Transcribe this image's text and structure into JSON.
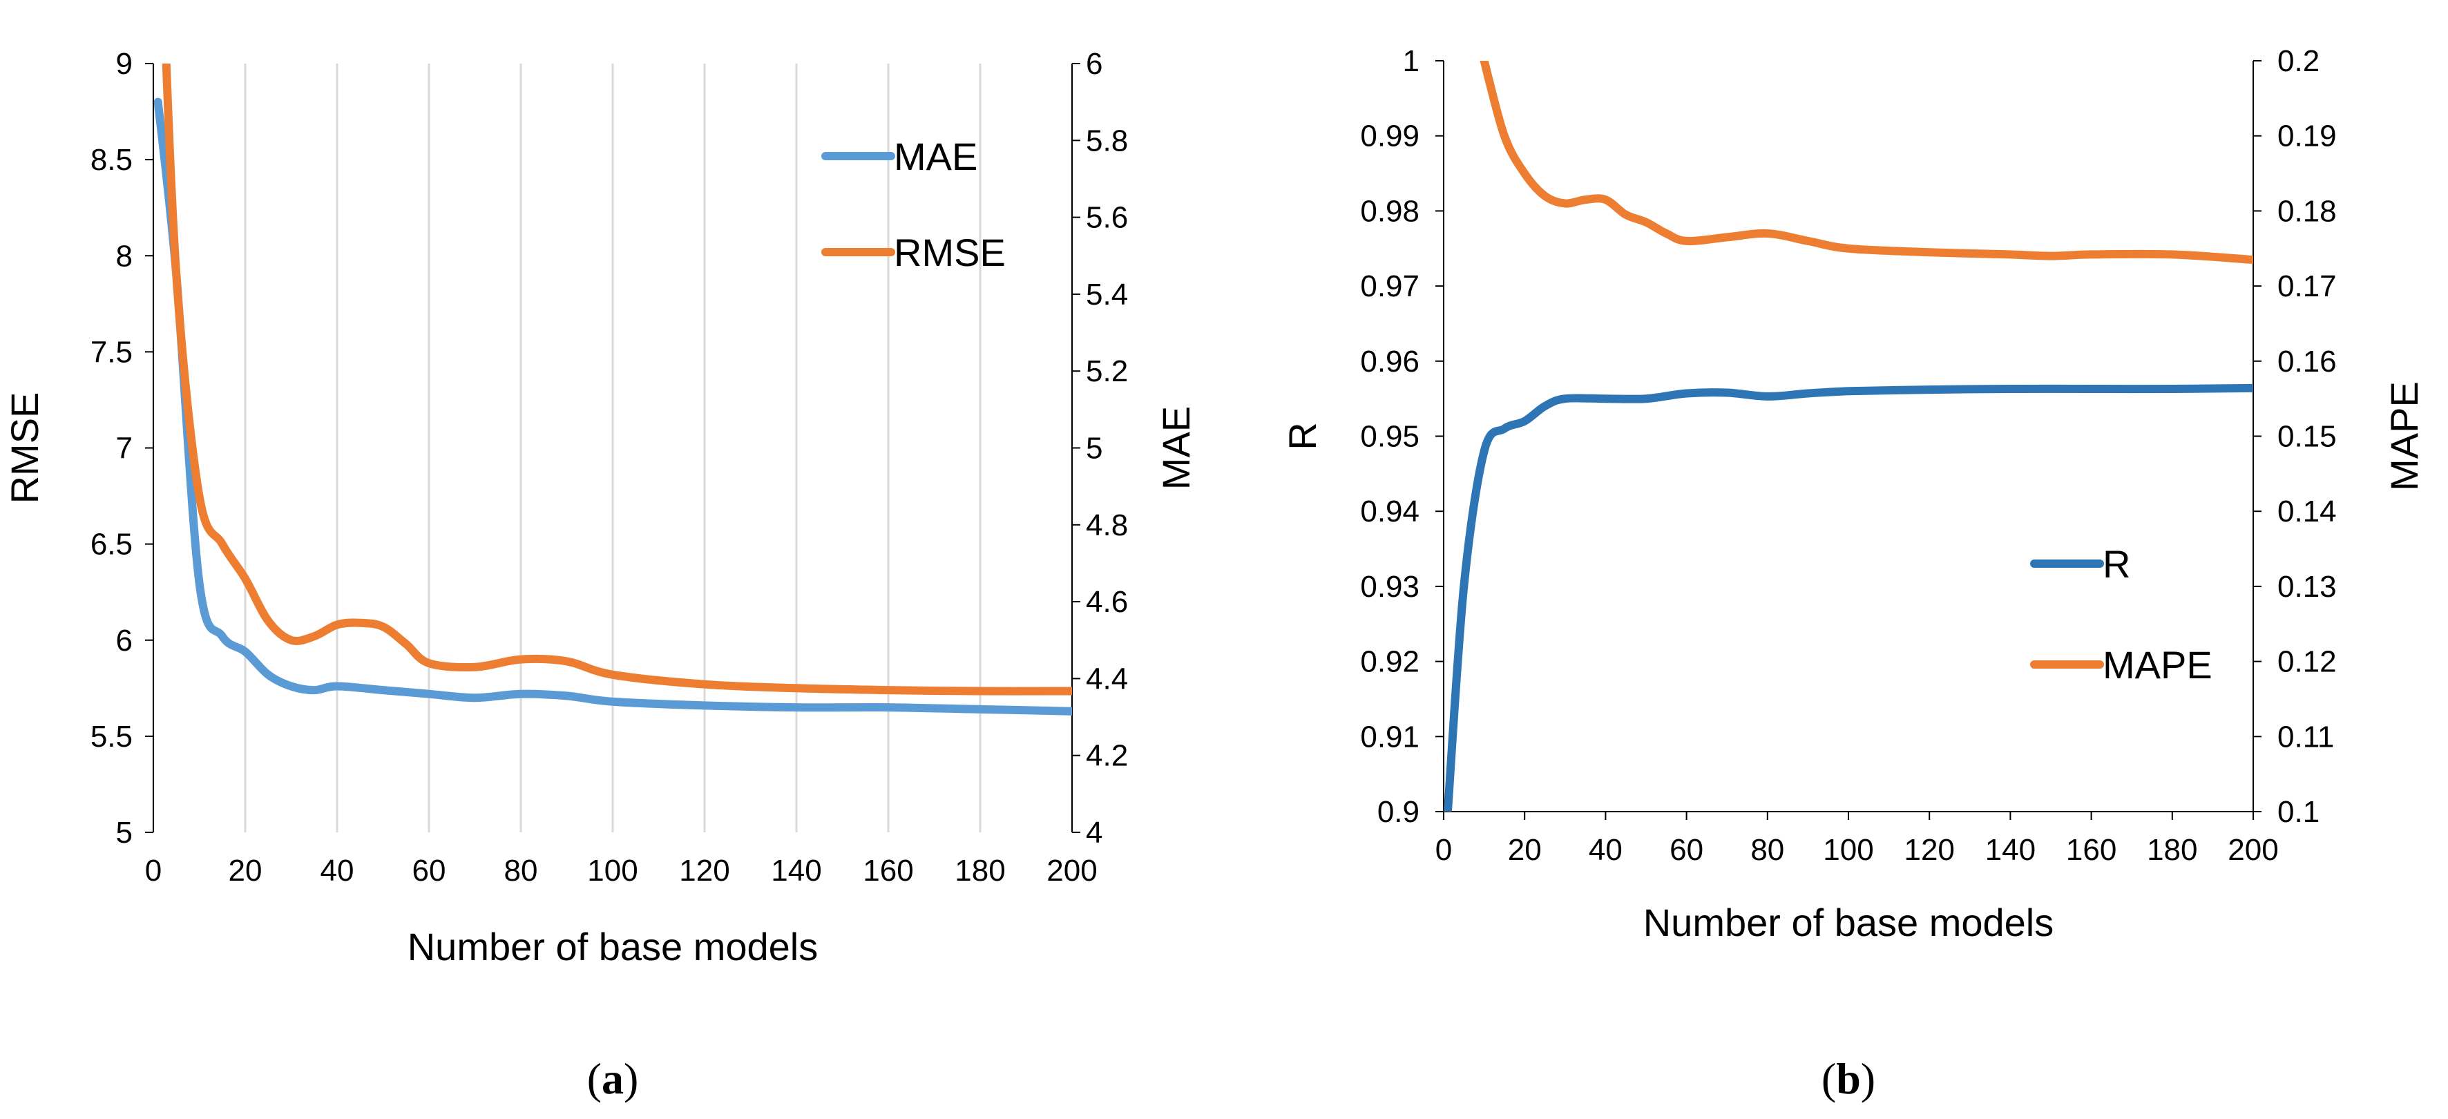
{
  "chart_data": [
    {
      "type": "line",
      "caption_letter": "a",
      "xlabel": "Number of base models",
      "ylabel": "RMSE",
      "y2label": "MAE",
      "xlim": [
        0,
        200
      ],
      "ylim": [
        5,
        9
      ],
      "y2lim": [
        4,
        6
      ],
      "xticks": [
        0,
        20,
        40,
        60,
        80,
        100,
        120,
        140,
        160,
        180,
        200
      ],
      "yticks": [
        5,
        5.5,
        6,
        6.5,
        7,
        7.5,
        8,
        8.5,
        9
      ],
      "y2ticks": [
        4,
        4.2,
        4.4,
        4.6,
        4.8,
        5,
        5.2,
        5.4,
        5.6,
        5.8,
        6
      ],
      "grid": "vertical",
      "legend_position": "top-right",
      "series": [
        {
          "name": "MAE",
          "axis": "right",
          "color": "#5B9BD5",
          "x": [
            1,
            5,
            10,
            15,
            20,
            25,
            30,
            35,
            40,
            50,
            60,
            70,
            80,
            90,
            100,
            120,
            140,
            160,
            180,
            200
          ],
          "y": [
            5.9,
            5.45,
            4.65,
            4.51,
            4.47,
            4.41,
            4.38,
            4.37,
            4.38,
            4.37,
            4.36,
            4.35,
            4.36,
            4.355,
            4.34,
            4.33,
            4.325,
            4.325,
            4.32,
            4.315
          ]
        },
        {
          "name": "RMSE",
          "axis": "left",
          "color": "#ED7D31",
          "x": [
            2,
            5,
            10,
            15,
            20,
            25,
            30,
            35,
            40,
            45,
            50,
            55,
            60,
            70,
            80,
            90,
            100,
            120,
            140,
            160,
            180,
            200
          ],
          "y": [
            9.5,
            7.9,
            6.75,
            6.5,
            6.32,
            6.1,
            6.0,
            6.02,
            6.08,
            6.09,
            6.07,
            5.98,
            5.88,
            5.86,
            5.9,
            5.89,
            5.82,
            5.77,
            5.75,
            5.74,
            5.735,
            5.735
          ]
        }
      ]
    },
    {
      "type": "line",
      "caption_letter": "b",
      "xlabel": "Number of base models",
      "ylabel": "R",
      "y2label": "MAPE",
      "xlim": [
        0,
        200
      ],
      "ylim": [
        0.9,
        1
      ],
      "y2lim": [
        0.1,
        0.2
      ],
      "xticks": [
        0,
        20,
        40,
        60,
        80,
        100,
        120,
        140,
        160,
        180,
        200
      ],
      "yticks": [
        0.9,
        0.91,
        0.92,
        0.93,
        0.94,
        0.95,
        0.96,
        0.97,
        0.98,
        0.99,
        1
      ],
      "y2ticks": [
        0.1,
        0.11,
        0.12,
        0.13,
        0.14,
        0.15,
        0.16,
        0.17,
        0.18,
        0.19,
        0.2
      ],
      "ytick_labels": [
        "0.9",
        "0.91",
        "0.92",
        "0.93",
        "0.94",
        "0.95",
        "0.96",
        "0.97",
        "0.98",
        "0.99",
        "1"
      ],
      "y2tick_labels": [
        "0.1",
        "0.11",
        "0.12",
        "0.13",
        "0.14",
        "0.15",
        "0.16",
        "0.17",
        "0.18",
        "0.19",
        "0.2"
      ],
      "grid": "none",
      "legend_position": "right",
      "series": [
        {
          "name": "R",
          "axis": "left",
          "color": "#2E75B6",
          "x": [
            1,
            5,
            10,
            15,
            20,
            25,
            30,
            40,
            50,
            60,
            70,
            80,
            90,
            100,
            120,
            140,
            160,
            180,
            200
          ],
          "y": [
            0.9,
            0.93,
            0.948,
            0.951,
            0.952,
            0.954,
            0.955,
            0.955,
            0.955,
            0.9557,
            0.9558,
            0.9553,
            0.9557,
            0.956,
            0.9562,
            0.9563,
            0.9563,
            0.9563,
            0.9564
          ]
        },
        {
          "name": "MAPE",
          "axis": "right",
          "color": "#ED7D31",
          "x": [
            10,
            15,
            20,
            25,
            30,
            35,
            40,
            45,
            50,
            55,
            60,
            70,
            80,
            90,
            100,
            120,
            140,
            150,
            160,
            180,
            200
          ],
          "y": [
            0.2,
            0.19,
            0.185,
            0.182,
            0.181,
            0.1815,
            0.1815,
            0.1795,
            0.1785,
            0.177,
            0.176,
            0.1765,
            0.177,
            0.176,
            0.175,
            0.1745,
            0.1742,
            0.174,
            0.1742,
            0.1742,
            0.1735
          ]
        }
      ]
    }
  ]
}
